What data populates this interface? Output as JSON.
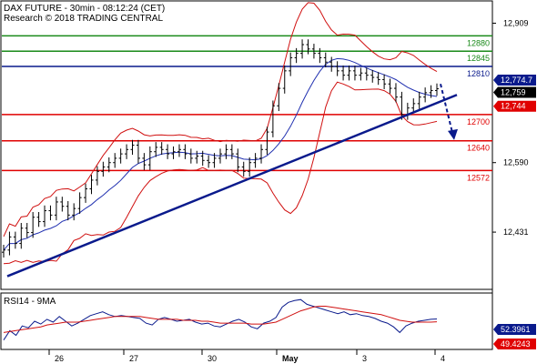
{
  "header": {
    "line1": "DAX FUTURE - 30min - 08:12:24 (CET)",
    "line2": "Research © 2018 TRADING CENTRAL"
  },
  "colors": {
    "green": "#1a8a1a",
    "blue": "#0a1a8c",
    "red": "#e00000",
    "price": "#000000",
    "ma": "#2030b0",
    "band": "#d01010",
    "rsi": "#0a1a8c",
    "rsi_ma": "#d01010"
  },
  "chart_data": [
    {
      "type": "candlestick",
      "title": "DAX FUTURE - 30min - 08:12:24 (CET)",
      "ylim": [
        12300,
        12960
      ],
      "y_ticks": [
        12431,
        12590,
        12909
      ],
      "x_ticks": [
        "26",
        "27",
        "30",
        "May",
        "3",
        "4"
      ],
      "horizontal_levels": [
        {
          "value": 12880,
          "label": "12880",
          "color": "green"
        },
        {
          "value": 12845,
          "label": "12845",
          "color": "green"
        },
        {
          "value": 12810,
          "label": "12810",
          "color": "blue"
        },
        {
          "value": 12700,
          "label": "12700",
          "color": "red"
        },
        {
          "value": 12640,
          "label": "12640",
          "color": "red"
        },
        {
          "value": 12572,
          "label": "12572",
          "color": "red"
        }
      ],
      "price_tags": [
        {
          "value": 12774.7,
          "label": "12,774.7",
          "color": "blue"
        },
        {
          "value": 12759,
          "label": "12,759",
          "color": "black"
        },
        {
          "value": 12744,
          "label": "12,744",
          "color": "red"
        }
      ],
      "close_series": [
        12390,
        12420,
        12405,
        12440,
        12430,
        12465,
        12455,
        12480,
        12470,
        12500,
        12490,
        12470,
        12485,
        12510,
        12530,
        12550,
        12570,
        12580,
        12590,
        12600,
        12610,
        12620,
        12630,
        12600,
        12585,
        12615,
        12625,
        12620,
        12610,
        12615,
        12620,
        12610,
        12600,
        12605,
        12595,
        12590,
        12600,
        12610,
        12620,
        12610,
        12580,
        12570,
        12590,
        12600,
        12620,
        12660,
        12720,
        12760,
        12800,
        12830,
        12840,
        12860,
        12850,
        12840,
        12830,
        12820,
        12810,
        12800,
        12790,
        12800,
        12790,
        12795,
        12790,
        12785,
        12780,
        12770,
        12760,
        12740,
        12700,
        12715,
        12725,
        12740,
        12750,
        12755,
        12759
      ],
      "trendline": {
        "start": 12330,
        "end": 12745
      },
      "forecast_arrow": {
        "from": 12770,
        "to": 12650
      }
    },
    {
      "type": "line",
      "title": "RSI14 - 9MA",
      "ylim": [
        20,
        80
      ],
      "series": [
        {
          "name": "RSI14",
          "values": [
            30,
            40,
            35,
            45,
            43,
            50,
            47,
            52,
            49,
            55,
            50,
            45,
            48,
            52,
            56,
            58,
            60,
            57,
            55,
            56,
            55,
            54,
            53,
            48,
            46,
            52,
            54,
            52,
            50,
            51,
            52,
            49,
            47,
            48,
            45,
            44,
            47,
            50,
            52,
            49,
            44,
            42,
            48,
            50,
            54,
            65,
            70,
            72,
            73,
            68,
            66,
            64,
            62,
            60,
            58,
            60,
            57,
            58,
            56,
            55,
            53,
            50,
            48,
            44,
            38,
            45,
            48,
            50,
            51,
            52,
            52.4
          ]
        },
        {
          "name": "9MA",
          "values": [
            38,
            39,
            40,
            41,
            42,
            43,
            44,
            46,
            47,
            48,
            49,
            49,
            49,
            50,
            51,
            52,
            53,
            54,
            55,
            55,
            55,
            55,
            55,
            54,
            53,
            52,
            52,
            52,
            52,
            51,
            51,
            51,
            50,
            50,
            49,
            48,
            48,
            48,
            48,
            48,
            47,
            47,
            47,
            48,
            49,
            52,
            55,
            58,
            61,
            63,
            65,
            66,
            66,
            65,
            64,
            63,
            62,
            61,
            60,
            59,
            58,
            57,
            55,
            53,
            51,
            50,
            49,
            49,
            49,
            49,
            49.4
          ]
        }
      ],
      "price_tags": [
        {
          "value": 52.3961,
          "label": "52.3961",
          "color": "blue"
        },
        {
          "value": 49.4243,
          "label": "49.4243",
          "color": "red"
        }
      ]
    }
  ]
}
